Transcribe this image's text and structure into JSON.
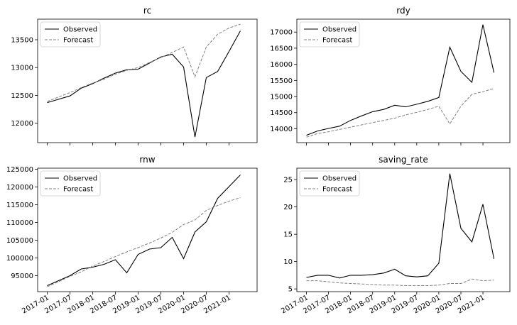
{
  "chart_data": [
    {
      "type": "line",
      "title": "rc",
      "x": [
        "2017Q1",
        "2017Q2",
        "2017Q3",
        "2017Q4",
        "2018Q1",
        "2018Q2",
        "2018Q3",
        "2018Q4",
        "2019Q1",
        "2019Q2",
        "2019Q3",
        "2019Q4",
        "2020Q1",
        "2020Q2",
        "2020Q3",
        "2020Q4",
        "2021Q1",
        "2021Q2"
      ],
      "series": [
        {
          "name": "Observed",
          "color": "#000000",
          "dash": "solid",
          "values": [
            12370,
            12430,
            12490,
            12630,
            12710,
            12810,
            12900,
            12960,
            12970,
            13080,
            13190,
            13240,
            13010,
            11750,
            12820,
            12930,
            13290,
            13660
          ]
        },
        {
          "name": "Forecast",
          "color": "#808080",
          "dash": "dashed",
          "values": [
            12390,
            12470,
            12550,
            12640,
            12720,
            12790,
            12880,
            12950,
            13000,
            13090,
            13180,
            13270,
            13370,
            12830,
            13370,
            13600,
            13710,
            13780
          ]
        }
      ],
      "yticks": [
        12000,
        12500,
        13000,
        13500
      ],
      "ylim": [
        11650,
        13870
      ],
      "legend": "upper-left",
      "grid": false
    },
    {
      "type": "line",
      "title": "rdy",
      "x": [
        "2017Q1",
        "2017Q2",
        "2017Q3",
        "2017Q4",
        "2018Q1",
        "2018Q2",
        "2018Q3",
        "2018Q4",
        "2019Q1",
        "2019Q2",
        "2019Q3",
        "2019Q4",
        "2020Q1",
        "2020Q2",
        "2020Q3",
        "2020Q4",
        "2021Q1",
        "2021Q2"
      ],
      "series": [
        {
          "name": "Observed",
          "color": "#000000",
          "dash": "solid",
          "values": [
            13800,
            13930,
            14010,
            14080,
            14260,
            14400,
            14530,
            14600,
            14730,
            14680,
            14760,
            14850,
            14970,
            16530,
            15780,
            15440,
            17230,
            15740
          ]
        },
        {
          "name": "Forecast",
          "color": "#808080",
          "dash": "dashed",
          "values": [
            13740,
            13850,
            13910,
            13980,
            14050,
            14120,
            14190,
            14260,
            14330,
            14430,
            14510,
            14600,
            14700,
            14150,
            14700,
            15070,
            15150,
            15250
          ]
        }
      ],
      "yticks": [
        14000,
        14500,
        15000,
        15500,
        16000,
        16500,
        17000
      ],
      "ylim": [
        13570,
        17400
      ],
      "legend": "upper-left",
      "grid": false
    },
    {
      "type": "line",
      "title": "rnw",
      "x": [
        "2017Q1",
        "2017Q2",
        "2017Q3",
        "2017Q4",
        "2018Q1",
        "2018Q2",
        "2018Q3",
        "2018Q4",
        "2019Q1",
        "2019Q2",
        "2019Q3",
        "2019Q4",
        "2020Q1",
        "2020Q2",
        "2020Q3",
        "2020Q4",
        "2021Q1",
        "2021Q2"
      ],
      "series": [
        {
          "name": "Observed",
          "color": "#000000",
          "dash": "solid",
          "values": [
            92200,
            93600,
            95000,
            96900,
            97400,
            98200,
            99500,
            95800,
            101000,
            102500,
            102900,
            105800,
            99800,
            107300,
            110200,
            116800,
            120100,
            123400
          ]
        },
        {
          "name": "Forecast",
          "color": "#808080",
          "dash": "dashed",
          "values": [
            91900,
            93300,
            94800,
            96100,
            97700,
            99000,
            100400,
            101700,
            102900,
            104200,
            105600,
            107200,
            109400,
            110700,
            113400,
            114800,
            116000,
            117000
          ]
        }
      ],
      "yticks": [
        95000,
        100000,
        105000,
        110000,
        115000,
        120000,
        125000
      ],
      "ylim": [
        90500,
        125300
      ],
      "xticks": [
        "2017-01",
        "2017-07",
        "2018-01",
        "2018-07",
        "2019-01",
        "2019-07",
        "2020-01",
        "2020-07",
        "2021-01"
      ],
      "legend": "upper-left",
      "grid": false
    },
    {
      "type": "line",
      "title": "saving_rate",
      "x": [
        "2017Q1",
        "2017Q2",
        "2017Q3",
        "2017Q4",
        "2018Q1",
        "2018Q2",
        "2018Q3",
        "2018Q4",
        "2019Q1",
        "2019Q2",
        "2019Q3",
        "2019Q4",
        "2020Q1",
        "2020Q2",
        "2020Q3",
        "2020Q4",
        "2021Q1",
        "2021Q2"
      ],
      "series": [
        {
          "name": "Observed",
          "color": "#000000",
          "dash": "solid",
          "values": [
            7.1,
            7.5,
            7.5,
            7.0,
            7.5,
            7.5,
            7.6,
            7.9,
            8.6,
            7.4,
            7.2,
            7.4,
            9.7,
            26.1,
            16.1,
            13.6,
            20.5,
            10.5
          ]
        },
        {
          "name": "Forecast",
          "color": "#808080",
          "dash": "dashed",
          "values": [
            6.5,
            6.5,
            6.3,
            6.1,
            6.0,
            5.9,
            5.8,
            5.7,
            5.7,
            5.6,
            5.6,
            5.6,
            5.7,
            6.0,
            6.0,
            6.8,
            6.5,
            6.6
          ]
        }
      ],
      "yticks": [
        5,
        10,
        15,
        20,
        25
      ],
      "ylim": [
        4.5,
        27.1
      ],
      "xticks": [
        "2017-01",
        "2017-07",
        "2018-01",
        "2018-07",
        "2019-01",
        "2019-07",
        "2020-01",
        "2020-07",
        "2021-01"
      ],
      "legend": "upper-left",
      "grid": false
    }
  ]
}
